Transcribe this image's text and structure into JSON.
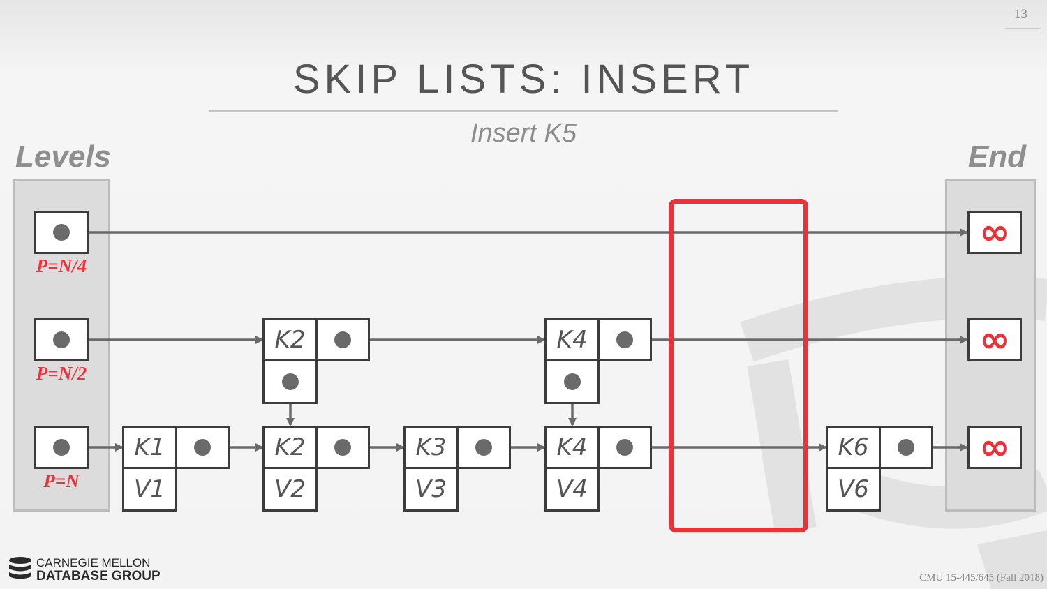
{
  "page_number": "13",
  "title": "SKIP LISTS: INSERT",
  "subtitle": "Insert K5",
  "levels_label": "Levels",
  "end_label": "End",
  "levels": [
    {
      "probability": "P=N/4"
    },
    {
      "probability": "P=N/2"
    },
    {
      "probability": "P=N"
    }
  ],
  "end_symbol": "∞",
  "nodes": [
    {
      "key": "K1",
      "value": "V1"
    },
    {
      "key": "K2",
      "value": "V2"
    },
    {
      "key": "K3",
      "value": "V3"
    },
    {
      "key": "K4",
      "value": "V4"
    },
    {
      "key": "K6",
      "value": "V6"
    }
  ],
  "level2_nodes": [
    {
      "key": "K2"
    },
    {
      "key": "K4"
    }
  ],
  "logo": {
    "line1": "CARNEGIE MELLON",
    "line2": "DATABASE GROUP"
  },
  "footer": "CMU 15-445/645 (Fall 2018)",
  "colors": {
    "accent": "#e8333a",
    "ink": "#3c3c3c",
    "arrow": "#6a6a6a"
  }
}
